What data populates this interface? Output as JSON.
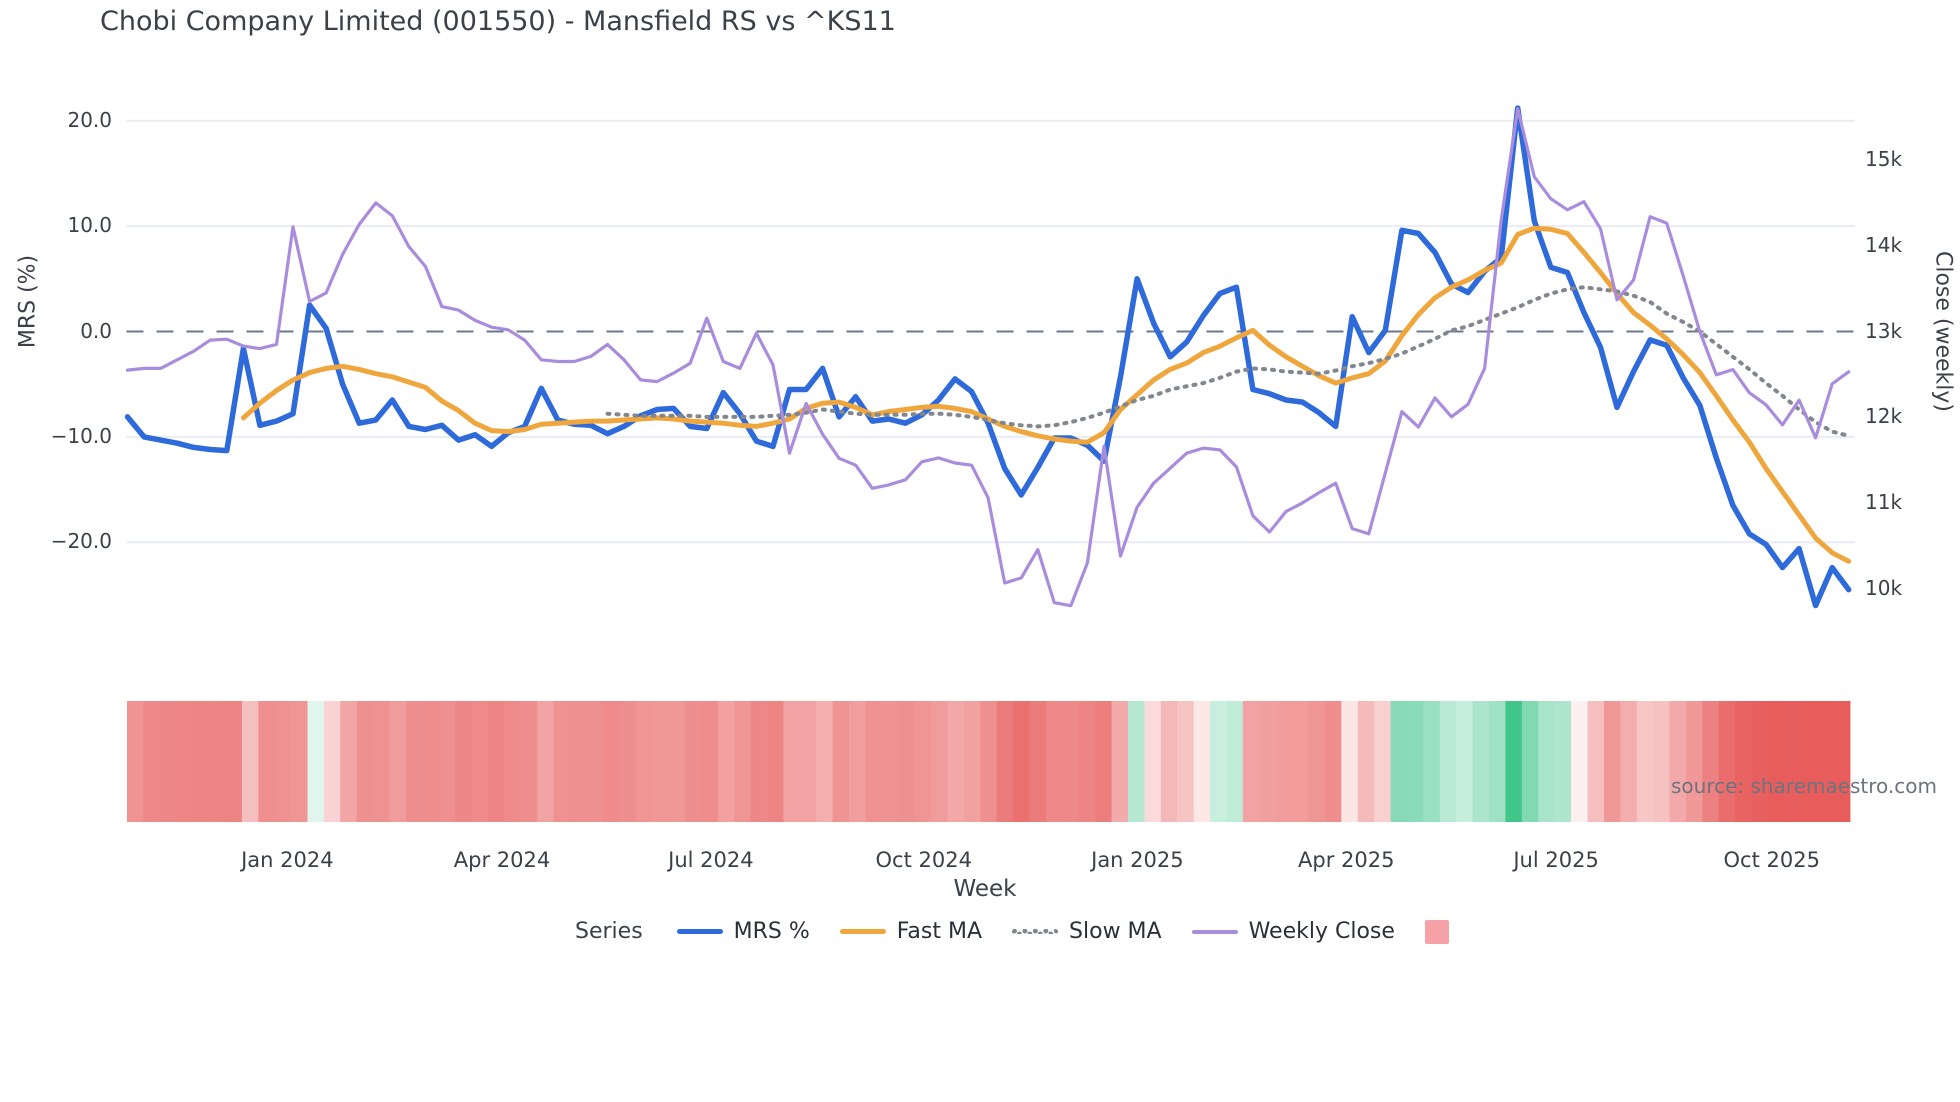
{
  "title": "Chobi Company Limited (001550) - Mansfield RS vs ^KS11",
  "source": "source: sharemaestro.com",
  "axes": {
    "left_label": "MRS (%)",
    "right_label": "Close (weekly)",
    "x_label": "Week",
    "left_ticks": [
      {
        "label": "20.0",
        "value": 20
      },
      {
        "label": "10.0",
        "value": 10
      },
      {
        "label": "0.0",
        "value": 0
      },
      {
        "label": "−10.0",
        "value": -10
      },
      {
        "label": "−20.0",
        "value": -20
      }
    ],
    "right_ticks": [
      {
        "label": "15k",
        "value": 15000
      },
      {
        "label": "14k",
        "value": 14000
      },
      {
        "label": "13k",
        "value": 13000
      },
      {
        "label": "12k",
        "value": 12000
      },
      {
        "label": "11k",
        "value": 11000
      },
      {
        "label": "10k",
        "value": 10000
      }
    ],
    "x_ticks": [
      {
        "label": "Jan 2024",
        "pos": 9.66
      },
      {
        "label": "Apr 2024",
        "pos": 22.63
      },
      {
        "label": "Jul 2024",
        "pos": 35.25
      },
      {
        "label": "Oct 2024",
        "pos": 48.11
      },
      {
        "label": "Jan 2025",
        "pos": 61.02
      },
      {
        "label": "Apr 2025",
        "pos": 73.64
      },
      {
        "label": "Jul 2025",
        "pos": 86.32
      },
      {
        "label": "Oct 2025",
        "pos": 99.35
      }
    ],
    "zero_line_value": 0
  },
  "legend": {
    "title": "Series",
    "items": [
      {
        "label": "MRS %",
        "swatch": "sw-solid-blue"
      },
      {
        "label": "Fast MA",
        "swatch": "sw-solid-orange"
      },
      {
        "label": "Slow MA",
        "swatch": "sw-dotted"
      },
      {
        "label": "Weekly Close",
        "swatch": "sw-solid-purple"
      },
      {
        "label": "",
        "swatch": "sw-square"
      }
    ]
  },
  "colors": {
    "mrs": "#2e6ada",
    "fast_ma": "#efa63c",
    "slow_ma": "#82878f",
    "weekly_close": "#a98ddc",
    "zero_dash": "#6a7890",
    "grid": "#e9ecf5",
    "heat_negative": "#e85c5c",
    "heat_positive": "#2fbf7f",
    "heat_legend_swatch": "#f5a2a6"
  },
  "chart_data": {
    "type": "line",
    "x_unit": "weekly points, Nov 2023 - Nov 2025",
    "n_points": 105,
    "left_axis_range": [
      -27,
      23
    ],
    "right_axis_range": [
      9600,
      15700
    ],
    "grid": true,
    "legend_position": "bottom",
    "series": [
      {
        "name": "MRS %",
        "axis": "left",
        "style": "solid",
        "color": "#2e6ada",
        "values": [
          -8.1,
          -10,
          -10.3,
          -10.6,
          -11,
          -11.2,
          -11.3,
          -1.6,
          -8.9,
          -8.5,
          -7.8,
          2.5,
          0.3,
          -5,
          -8.7,
          -8.4,
          -6.5,
          -9,
          -9.3,
          -8.9,
          -10.3,
          -9.8,
          -10.9,
          -9.6,
          -9,
          -5.4,
          -8.4,
          -8.8,
          -8.9,
          -9.7,
          -9,
          -8,
          -7.4,
          -7.3,
          -9,
          -9.2,
          -5.8,
          -7.8,
          -10.4,
          -10.9,
          -5.5,
          -5.5,
          -3.5,
          -8.1,
          -6.2,
          -8.5,
          -8.3,
          -8.7,
          -7.9,
          -6.5,
          -4.5,
          -5.7,
          -8.7,
          -13,
          -15.5,
          -12.9,
          -10.1,
          -10.1,
          -10.8,
          -12.3,
          -4.3,
          5,
          0.8,
          -2.4,
          -1,
          1.5,
          3.6,
          4.2,
          -5.5,
          -5.9,
          -6.5,
          -6.7,
          -7.7,
          -9,
          1.4,
          -2,
          0.1,
          9.6,
          9.3,
          7.5,
          4.5,
          3.7,
          5.7,
          7,
          21.2,
          10.5,
          6.1,
          5.6,
          1.8,
          -1.5,
          -7.2,
          -3.8,
          -0.8,
          -1.3,
          -4.4,
          -7,
          -12,
          -16.5,
          -19.2,
          -20.2,
          -22.4,
          -20.6,
          -26,
          -22.4,
          -24.5
        ]
      },
      {
        "name": "Fast MA",
        "axis": "left",
        "style": "solid",
        "color": "#efa63c",
        "values": [
          null,
          null,
          null,
          null,
          null,
          null,
          null,
          -8.2,
          -6.8,
          -5.6,
          -4.6,
          -3.9,
          -3.5,
          -3.3,
          -3.6,
          -4,
          -4.3,
          -4.8,
          -5.3,
          -6.6,
          -7.5,
          -8.7,
          -9.4,
          -9.5,
          -9.3,
          -8.8,
          -8.7,
          -8.6,
          -8.5,
          -8.5,
          -8.4,
          -8.3,
          -8.2,
          -8.3,
          -8.5,
          -8.6,
          -8.7,
          -8.9,
          -9,
          -8.7,
          -8.3,
          -7.3,
          -6.8,
          -6.7,
          -7.2,
          -7.9,
          -7.6,
          -7.4,
          -7.2,
          -7.1,
          -7.3,
          -7.6,
          -8.3,
          -9,
          -9.5,
          -9.9,
          -10.2,
          -10.4,
          -10.5,
          -9.6,
          -7.4,
          -6,
          -4.6,
          -3.6,
          -3,
          -2,
          -1.4,
          -0.6,
          0.1,
          -1.3,
          -2.4,
          -3.3,
          -4.2,
          -4.9,
          -4.4,
          -4,
          -2.8,
          -0.4,
          1.6,
          3.2,
          4.2,
          4.9,
          5.8,
          6.5,
          9.2,
          9.8,
          9.7,
          9.3,
          7.5,
          5.6,
          3.6,
          1.8,
          0.6,
          -0.7,
          -2.2,
          -3.9,
          -6.1,
          -8.4,
          -10.5,
          -13,
          -15.2,
          -17.4,
          -19.6,
          -21,
          -21.8
        ]
      },
      {
        "name": "Slow MA",
        "axis": "left",
        "style": "dotted",
        "color": "#82878f",
        "values": [
          null,
          null,
          null,
          null,
          null,
          null,
          null,
          null,
          null,
          null,
          null,
          null,
          null,
          null,
          null,
          null,
          null,
          null,
          null,
          null,
          null,
          null,
          null,
          null,
          null,
          null,
          null,
          null,
          null,
          -7.8,
          -7.9,
          -8,
          -8,
          -8,
          -8,
          -8.1,
          -8.1,
          -8.1,
          -8.1,
          -8,
          -7.9,
          -7.7,
          -7.4,
          -7.6,
          -7.8,
          -7.9,
          -7.9,
          -7.9,
          -7.8,
          -7.8,
          -7.9,
          -8.1,
          -8.4,
          -8.7,
          -8.9,
          -9,
          -8.9,
          -8.6,
          -8.2,
          -7.7,
          -7.1,
          -6.5,
          -6.1,
          -5.5,
          -5.2,
          -4.9,
          -4.4,
          -3.8,
          -3.5,
          -3.6,
          -3.8,
          -3.9,
          -4,
          -3.7,
          -3.3,
          -3,
          -2.6,
          -2.1,
          -1.4,
          -0.7,
          0.1,
          0.5,
          1.1,
          1.7,
          2.3,
          3,
          3.6,
          4,
          4.2,
          4,
          3.8,
          3.4,
          2.8,
          1.7,
          0.9,
          0,
          -1.2,
          -2.4,
          -3.6,
          -4.9,
          -6.1,
          -7.4,
          -8.6,
          -9.5,
          -9.9
        ]
      },
      {
        "name": "Weekly Close",
        "axis": "right",
        "style": "solid",
        "color": "#a98ddc",
        "values": [
          12550,
          12570,
          12570,
          12670,
          12770,
          12900,
          12910,
          12830,
          12800,
          12850,
          14220,
          13350,
          13450,
          13900,
          14250,
          14500,
          14350,
          13990,
          13760,
          13290,
          13250,
          13130,
          13050,
          13020,
          12900,
          12670,
          12650,
          12650,
          12710,
          12850,
          12670,
          12435,
          12415,
          12515,
          12630,
          13155,
          12650,
          12570,
          12980,
          12610,
          11580,
          12160,
          11800,
          11520,
          11440,
          11170,
          11210,
          11270,
          11480,
          11525,
          11465,
          11440,
          11060,
          10065,
          10125,
          10455,
          9835,
          9800,
          10300,
          11660,
          10380,
          10950,
          11230,
          11405,
          11580,
          11640,
          11620,
          11420,
          10850,
          10660,
          10900,
          11000,
          11120,
          11230,
          10700,
          10640,
          11350,
          12065,
          11885,
          12225,
          12005,
          12150,
          12570,
          14300,
          15600,
          14805,
          14550,
          14420,
          14515,
          14200,
          13370,
          13600,
          14340,
          14265,
          13650,
          13000,
          12495,
          12555,
          12285,
          12145,
          11910,
          12200,
          11760,
          12390,
          12530
        ]
      }
    ],
    "heatmap": {
      "description": "weekly color strip below chart: red for negative relative strength, white near zero, green for positive; intensity scales with magnitude",
      "derived_from": "MRS %"
    }
  }
}
